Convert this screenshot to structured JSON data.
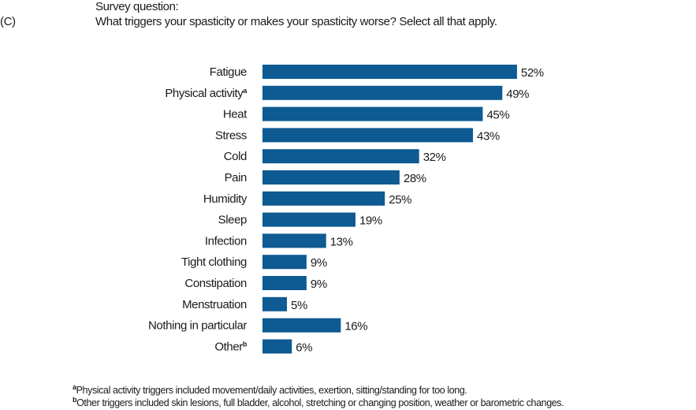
{
  "panel_label": "(C)",
  "survey_label": "Survey question:",
  "chart_data": {
    "type": "bar",
    "orientation": "horizontal",
    "title": "What triggers your spasticity or makes your spasticity worse? Select all that apply.",
    "categories": [
      "Fatigue",
      "Physical activity",
      "Heat",
      "Stress",
      "Cold",
      "Pain",
      "Humidity",
      "Sleep",
      "Infection",
      "Tight clothing",
      "Constipation",
      "Menstruation",
      "Nothing in particular",
      "Other"
    ],
    "superscripts": [
      "",
      "a",
      "",
      "",
      "",
      "",
      "",
      "",
      "",
      "",
      "",
      "",
      "",
      "b"
    ],
    "values": [
      52,
      49,
      45,
      43,
      32,
      28,
      25,
      19,
      13,
      9,
      9,
      5,
      16,
      6
    ],
    "value_suffix": "%",
    "xlabel": "",
    "ylabel": "",
    "xlim": [
      0,
      100
    ],
    "grid": false,
    "bar_color": "#0e5a92"
  },
  "footnotes": [
    {
      "mark": "a",
      "text": "Physical activity triggers included movement/daily activities, exertion, sitting/standing for too long."
    },
    {
      "mark": "b",
      "text": "Other triggers included skin lesions, full bladder, alcohol, stretching or changing position, weather or barometric changes."
    }
  ]
}
